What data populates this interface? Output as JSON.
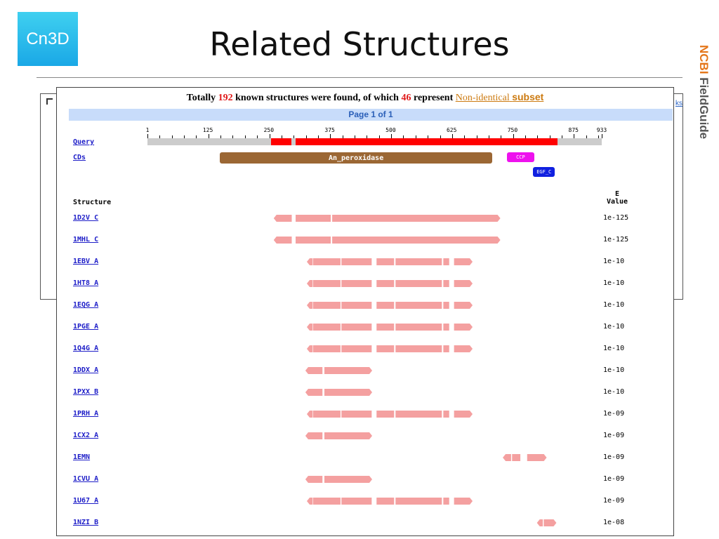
{
  "slide": {
    "logo_text": "Cn3D",
    "title": "Related Structures",
    "side_label_brand": "NCBI",
    "side_label_rest": " FieldGuide",
    "back_window_link": "ks"
  },
  "results": {
    "summary_prefix": "Totally",
    "total_count": "192",
    "summary_middle": "known structures were found, of which",
    "subset_count": "46",
    "summary_suffix": "represent",
    "subset_link_part1": "Non-identical",
    "subset_link_part2": "subset",
    "page_label": "Page 1 of 1"
  },
  "ruler": {
    "length": 933,
    "labels": [
      1,
      125,
      250,
      375,
      500,
      625,
      750,
      875,
      933
    ]
  },
  "query": {
    "label": "Query",
    "aligned_segments": [
      [
        255,
        297
      ],
      [
        305,
        842
      ]
    ]
  },
  "cds": {
    "label": "CDs",
    "domains": [
      {
        "name": "An_peroxidase",
        "start": 150,
        "end": 708,
        "color": "#9b6734"
      },
      {
        "name": "CCP",
        "start": 738,
        "end": 795,
        "color": "#ee11ee"
      },
      {
        "name": "EGF_C",
        "start": 792,
        "end": 837,
        "color": "#1020e0"
      }
    ]
  },
  "table": {
    "structure_header": "Structure",
    "evalue_header_line1": "E",
    "evalue_header_line2": "Value",
    "bar_color": "#f4a0a0",
    "rows": [
      {
        "id": "1D2V C",
        "evalue": "1e-125",
        "segments": [
          [
            260,
            297
          ],
          [
            305,
            377
          ],
          [
            380,
            725
          ]
        ]
      },
      {
        "id": "1MHL C",
        "evalue": "1e-125",
        "segments": [
          [
            260,
            297
          ],
          [
            305,
            377
          ],
          [
            380,
            725
          ]
        ]
      },
      {
        "id": "1EBV A",
        "evalue": "1e-10",
        "segments": [
          [
            328,
            340
          ],
          [
            341,
            397
          ],
          [
            399,
            461
          ],
          [
            471,
            507
          ],
          [
            510,
            605
          ],
          [
            608,
            620
          ],
          [
            630,
            668
          ]
        ]
      },
      {
        "id": "1HT8 A",
        "evalue": "1e-10",
        "segments": [
          [
            328,
            340
          ],
          [
            341,
            397
          ],
          [
            399,
            461
          ],
          [
            471,
            507
          ],
          [
            510,
            605
          ],
          [
            608,
            620
          ],
          [
            630,
            668
          ]
        ]
      },
      {
        "id": "1EQG A",
        "evalue": "1e-10",
        "segments": [
          [
            328,
            340
          ],
          [
            341,
            397
          ],
          [
            399,
            461
          ],
          [
            471,
            507
          ],
          [
            510,
            605
          ],
          [
            608,
            620
          ],
          [
            630,
            668
          ]
        ]
      },
      {
        "id": "1PGE A",
        "evalue": "1e-10",
        "segments": [
          [
            328,
            340
          ],
          [
            341,
            397
          ],
          [
            399,
            461
          ],
          [
            471,
            507
          ],
          [
            510,
            605
          ],
          [
            608,
            620
          ],
          [
            630,
            668
          ]
        ]
      },
      {
        "id": "1Q4G A",
        "evalue": "1e-10",
        "segments": [
          [
            328,
            340
          ],
          [
            341,
            397
          ],
          [
            399,
            461
          ],
          [
            471,
            507
          ],
          [
            510,
            605
          ],
          [
            608,
            620
          ],
          [
            630,
            668
          ]
        ]
      },
      {
        "id": "1DDX A",
        "evalue": "1e-10",
        "segments": [
          [
            325,
            360
          ],
          [
            364,
            462
          ]
        ]
      },
      {
        "id": "1PXX B",
        "evalue": "1e-10",
        "segments": [
          [
            325,
            360
          ],
          [
            364,
            462
          ]
        ]
      },
      {
        "id": "1PRH A",
        "evalue": "1e-09",
        "segments": [
          [
            328,
            340
          ],
          [
            341,
            397
          ],
          [
            399,
            461
          ],
          [
            471,
            507
          ],
          [
            510,
            605
          ],
          [
            608,
            620
          ],
          [
            630,
            668
          ]
        ]
      },
      {
        "id": "1CX2 A",
        "evalue": "1e-09",
        "segments": [
          [
            325,
            360
          ],
          [
            364,
            462
          ]
        ]
      },
      {
        "id": "1EMN",
        "evalue": "1e-09",
        "segments": [
          [
            730,
            747
          ],
          [
            749,
            766
          ],
          [
            780,
            820
          ]
        ]
      },
      {
        "id": "1CVU A",
        "evalue": "1e-09",
        "segments": [
          [
            325,
            360
          ],
          [
            364,
            462
          ]
        ]
      },
      {
        "id": "1U67 A",
        "evalue": "1e-09",
        "segments": [
          [
            328,
            340
          ],
          [
            341,
            397
          ],
          [
            399,
            461
          ],
          [
            471,
            507
          ],
          [
            510,
            605
          ],
          [
            608,
            620
          ],
          [
            630,
            668
          ]
        ]
      },
      {
        "id": "1NZI B",
        "evalue": "1e-08",
        "segments": [
          [
            800,
            812
          ],
          [
            814,
            840
          ]
        ]
      }
    ]
  }
}
